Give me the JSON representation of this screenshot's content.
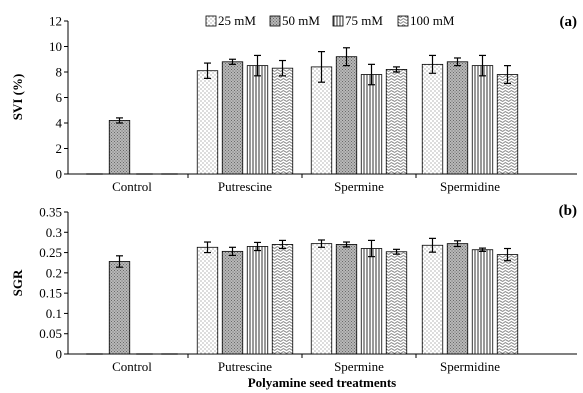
{
  "chart_data": [
    {
      "type": "bar",
      "panel_tag": "(a)",
      "ylabel": "SVI (%)",
      "xlabel": "",
      "ylim": [
        0,
        12
      ],
      "yticks": [
        "0",
        "2",
        "4",
        "6",
        "8",
        "10",
        "12"
      ],
      "categories": [
        "Control",
        "Putrescine",
        "Spermine",
        "Spermidine"
      ],
      "legend_position": "top-right",
      "series": [
        {
          "name": "25 mM",
          "values": [
            0,
            8.1,
            8.4,
            8.6
          ],
          "errors": [
            0,
            0.6,
            1.2,
            0.7
          ]
        },
        {
          "name": "50 mM",
          "values": [
            4.2,
            8.8,
            9.2,
            8.8
          ],
          "errors": [
            0.2,
            0.2,
            0.7,
            0.3
          ]
        },
        {
          "name": "75 mM",
          "values": [
            0,
            8.5,
            7.8,
            8.5
          ],
          "errors": [
            0,
            0.8,
            0.8,
            0.8
          ]
        },
        {
          "name": "100 mM",
          "values": [
            0,
            8.3,
            8.2,
            7.8
          ],
          "errors": [
            0,
            0.6,
            0.2,
            0.7
          ]
        }
      ]
    },
    {
      "type": "bar",
      "panel_tag": "(b)",
      "ylabel": "SGR",
      "xlabel": "Polyamine seed treatments",
      "ylim": [
        0,
        0.35
      ],
      "yticks": [
        "0",
        "0.05",
        "0.1",
        "0.15",
        "0.2",
        "0.25",
        "0.3",
        "0.35"
      ],
      "categories": [
        "Control",
        "Putrescine",
        "Spermine",
        "Spermidine"
      ],
      "series": [
        {
          "name": "25 mM",
          "values": [
            0,
            0.263,
            0.272,
            0.268
          ],
          "errors": [
            0,
            0.013,
            0.009,
            0.017
          ]
        },
        {
          "name": "50 mM",
          "values": [
            0.228,
            0.253,
            0.27,
            0.272
          ],
          "errors": [
            0.014,
            0.01,
            0.006,
            0.007
          ]
        },
        {
          "name": "75 mM",
          "values": [
            0,
            0.265,
            0.26,
            0.257
          ],
          "errors": [
            0,
            0.01,
            0.02,
            0.004
          ]
        },
        {
          "name": "100 mM",
          "values": [
            0,
            0.27,
            0.252,
            0.245
          ],
          "errors": [
            0,
            0.01,
            0.006,
            0.015
          ]
        }
      ]
    }
  ]
}
